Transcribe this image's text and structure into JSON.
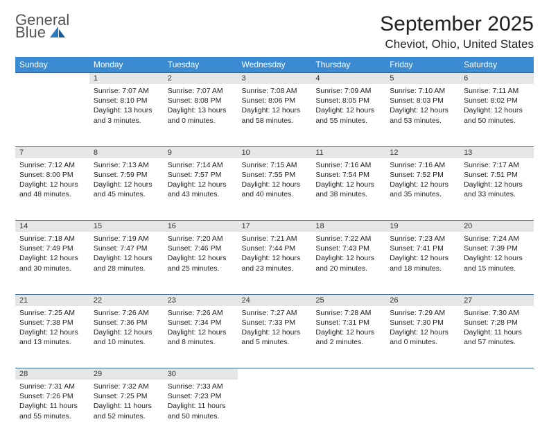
{
  "branding": {
    "logo_line1": "General",
    "logo_line2": "Blue",
    "logo_color_gray": "#555555",
    "logo_color_blue": "#2e7cc0"
  },
  "header": {
    "month_title": "September 2025",
    "location": "Cheviot, Ohio, United States"
  },
  "style": {
    "header_bg": "#3a8bd1",
    "header_text": "#ffffff",
    "daynum_bg": "#e6e6e6",
    "border_color": "#3a6a9a",
    "body_text": "#222222"
  },
  "weekdays": [
    "Sunday",
    "Monday",
    "Tuesday",
    "Wednesday",
    "Thursday",
    "Friday",
    "Saturday"
  ],
  "weeks": [
    [
      null,
      {
        "n": "1",
        "sunrise": "7:07 AM",
        "sunset": "8:10 PM",
        "daylight": "13 hours and 3 minutes."
      },
      {
        "n": "2",
        "sunrise": "7:07 AM",
        "sunset": "8:08 PM",
        "daylight": "13 hours and 0 minutes."
      },
      {
        "n": "3",
        "sunrise": "7:08 AM",
        "sunset": "8:06 PM",
        "daylight": "12 hours and 58 minutes."
      },
      {
        "n": "4",
        "sunrise": "7:09 AM",
        "sunset": "8:05 PM",
        "daylight": "12 hours and 55 minutes."
      },
      {
        "n": "5",
        "sunrise": "7:10 AM",
        "sunset": "8:03 PM",
        "daylight": "12 hours and 53 minutes."
      },
      {
        "n": "6",
        "sunrise": "7:11 AM",
        "sunset": "8:02 PM",
        "daylight": "12 hours and 50 minutes."
      }
    ],
    [
      {
        "n": "7",
        "sunrise": "7:12 AM",
        "sunset": "8:00 PM",
        "daylight": "12 hours and 48 minutes."
      },
      {
        "n": "8",
        "sunrise": "7:13 AM",
        "sunset": "7:59 PM",
        "daylight": "12 hours and 45 minutes."
      },
      {
        "n": "9",
        "sunrise": "7:14 AM",
        "sunset": "7:57 PM",
        "daylight": "12 hours and 43 minutes."
      },
      {
        "n": "10",
        "sunrise": "7:15 AM",
        "sunset": "7:55 PM",
        "daylight": "12 hours and 40 minutes."
      },
      {
        "n": "11",
        "sunrise": "7:16 AM",
        "sunset": "7:54 PM",
        "daylight": "12 hours and 38 minutes."
      },
      {
        "n": "12",
        "sunrise": "7:16 AM",
        "sunset": "7:52 PM",
        "daylight": "12 hours and 35 minutes."
      },
      {
        "n": "13",
        "sunrise": "7:17 AM",
        "sunset": "7:51 PM",
        "daylight": "12 hours and 33 minutes."
      }
    ],
    [
      {
        "n": "14",
        "sunrise": "7:18 AM",
        "sunset": "7:49 PM",
        "daylight": "12 hours and 30 minutes."
      },
      {
        "n": "15",
        "sunrise": "7:19 AM",
        "sunset": "7:47 PM",
        "daylight": "12 hours and 28 minutes."
      },
      {
        "n": "16",
        "sunrise": "7:20 AM",
        "sunset": "7:46 PM",
        "daylight": "12 hours and 25 minutes."
      },
      {
        "n": "17",
        "sunrise": "7:21 AM",
        "sunset": "7:44 PM",
        "daylight": "12 hours and 23 minutes."
      },
      {
        "n": "18",
        "sunrise": "7:22 AM",
        "sunset": "7:43 PM",
        "daylight": "12 hours and 20 minutes."
      },
      {
        "n": "19",
        "sunrise": "7:23 AM",
        "sunset": "7:41 PM",
        "daylight": "12 hours and 18 minutes."
      },
      {
        "n": "20",
        "sunrise": "7:24 AM",
        "sunset": "7:39 PM",
        "daylight": "12 hours and 15 minutes."
      }
    ],
    [
      {
        "n": "21",
        "sunrise": "7:25 AM",
        "sunset": "7:38 PM",
        "daylight": "12 hours and 13 minutes."
      },
      {
        "n": "22",
        "sunrise": "7:26 AM",
        "sunset": "7:36 PM",
        "daylight": "12 hours and 10 minutes."
      },
      {
        "n": "23",
        "sunrise": "7:26 AM",
        "sunset": "7:34 PM",
        "daylight": "12 hours and 8 minutes."
      },
      {
        "n": "24",
        "sunrise": "7:27 AM",
        "sunset": "7:33 PM",
        "daylight": "12 hours and 5 minutes."
      },
      {
        "n": "25",
        "sunrise": "7:28 AM",
        "sunset": "7:31 PM",
        "daylight": "12 hours and 2 minutes."
      },
      {
        "n": "26",
        "sunrise": "7:29 AM",
        "sunset": "7:30 PM",
        "daylight": "12 hours and 0 minutes."
      },
      {
        "n": "27",
        "sunrise": "7:30 AM",
        "sunset": "7:28 PM",
        "daylight": "11 hours and 57 minutes."
      }
    ],
    [
      {
        "n": "28",
        "sunrise": "7:31 AM",
        "sunset": "7:26 PM",
        "daylight": "11 hours and 55 minutes."
      },
      {
        "n": "29",
        "sunrise": "7:32 AM",
        "sunset": "7:25 PM",
        "daylight": "11 hours and 52 minutes."
      },
      {
        "n": "30",
        "sunrise": "7:33 AM",
        "sunset": "7:23 PM",
        "daylight": "11 hours and 50 minutes."
      },
      null,
      null,
      null,
      null
    ]
  ],
  "labels": {
    "sunrise_prefix": "Sunrise: ",
    "sunset_prefix": "Sunset: ",
    "daylight_prefix": "Daylight: "
  }
}
